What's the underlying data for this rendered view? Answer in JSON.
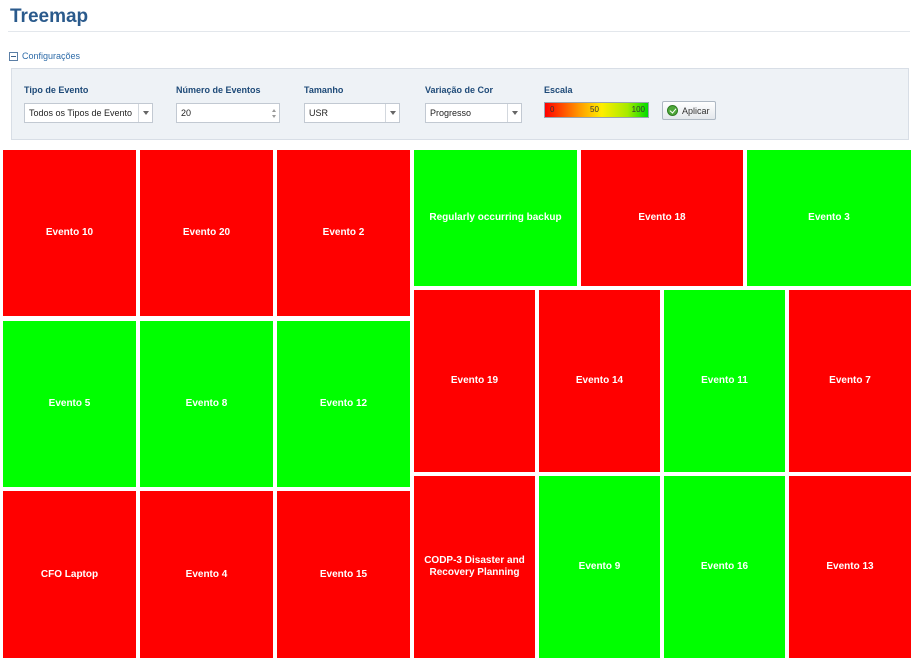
{
  "page": {
    "title": "Treemap"
  },
  "config": {
    "toggle_label": "Configurações",
    "event_type": {
      "label": "Tipo de Evento",
      "value": "Todos os Tipos de Evento"
    },
    "event_count": {
      "label": "Número de Eventos",
      "value": "20"
    },
    "size": {
      "label": "Tamanho",
      "value": "USR"
    },
    "color_variation": {
      "label": "Variação de Cor",
      "value": "Progresso"
    },
    "scale": {
      "label": "Escala",
      "min": "0",
      "mid": "50",
      "max": "100"
    },
    "apply_label": "Aplicar"
  },
  "colors": {
    "red": "#ff0000",
    "green": "#00ff00",
    "title": "#2a5a8c"
  },
  "treemap": {
    "tiles": [
      {
        "label": "Evento 10",
        "color": "red"
      },
      {
        "label": "Evento 20",
        "color": "red"
      },
      {
        "label": "Evento 2",
        "color": "red"
      },
      {
        "label": "Evento 5",
        "color": "green"
      },
      {
        "label": "Evento 8",
        "color": "green"
      },
      {
        "label": "Evento 12",
        "color": "green"
      },
      {
        "label": "CFO Laptop",
        "color": "red"
      },
      {
        "label": "Evento 4",
        "color": "red"
      },
      {
        "label": "Evento 15",
        "color": "red"
      },
      {
        "label": "Regularly occurring backup",
        "color": "green"
      },
      {
        "label": "Evento 18",
        "color": "red"
      },
      {
        "label": "Evento 3",
        "color": "green"
      },
      {
        "label": "Evento 19",
        "color": "red"
      },
      {
        "label": "Evento 14",
        "color": "red"
      },
      {
        "label": "Evento 11",
        "color": "green"
      },
      {
        "label": "Evento 7",
        "color": "red"
      },
      {
        "label": "CODP-3 Disaster and Recovery Planning",
        "color": "red"
      },
      {
        "label": "Evento 9",
        "color": "green"
      },
      {
        "label": "Evento 16",
        "color": "green"
      },
      {
        "label": "Evento 13",
        "color": "red"
      }
    ]
  }
}
